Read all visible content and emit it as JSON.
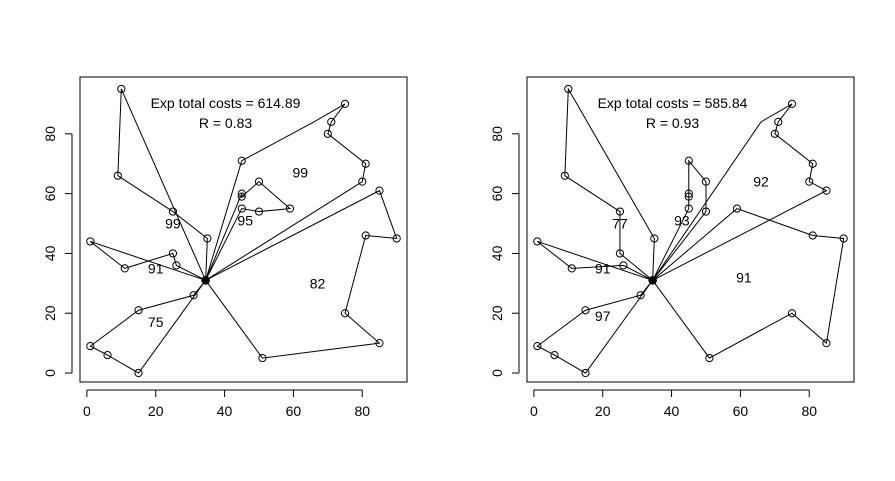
{
  "chart_data": [
    {
      "type": "scatter",
      "title": "",
      "xlabel": "",
      "ylabel": "",
      "xlim": [
        -2,
        93
      ],
      "ylim": [
        -3,
        99
      ],
      "xticks": [
        0,
        20,
        40,
        60,
        80
      ],
      "yticks": [
        0,
        20,
        40,
        60,
        80
      ],
      "annotations": [
        "Exp total costs = 614.89",
        "R = 0.83"
      ],
      "depot": {
        "x": 34.5,
        "y": 31
      },
      "points": [
        [
          10,
          95
        ],
        [
          9,
          66
        ],
        [
          25,
          54
        ],
        [
          35,
          45
        ],
        [
          1,
          44
        ],
        [
          11,
          35
        ],
        [
          25,
          40
        ],
        [
          26,
          36
        ],
        [
          45,
          71
        ],
        [
          75,
          90
        ],
        [
          71,
          84
        ],
        [
          70,
          80
        ],
        [
          81,
          70
        ],
        [
          80,
          64
        ],
        [
          85,
          61
        ],
        [
          90,
          45
        ],
        [
          81,
          46
        ],
        [
          75,
          20
        ],
        [
          85,
          10
        ],
        [
          51,
          5
        ],
        [
          31,
          26
        ],
        [
          15,
          21
        ],
        [
          1,
          9
        ],
        [
          6,
          6
        ],
        [
          15,
          0
        ],
        [
          45,
          60
        ],
        [
          45,
          59
        ],
        [
          50,
          64
        ],
        [
          59,
          55
        ],
        [
          50,
          54
        ],
        [
          45,
          55
        ]
      ],
      "routes": [
        {
          "label": "99",
          "label_x": 25,
          "label_y": 50,
          "stops": [
            [
              10,
              95
            ],
            [
              9,
              66
            ],
            [
              25,
              54
            ],
            [
              35,
              45
            ]
          ]
        },
        {
          "label": "91",
          "label_x": 20,
          "label_y": 35,
          "stops": [
            [
              1,
              44
            ],
            [
              11,
              35
            ],
            [
              25,
              40
            ],
            [
              26,
              36
            ]
          ]
        },
        {
          "label": "75",
          "label_x": 20,
          "label_y": 17,
          "stops": [
            [
              31,
              26
            ],
            [
              15,
              21
            ],
            [
              1,
              9
            ],
            [
              6,
              6
            ],
            [
              15,
              0
            ]
          ]
        },
        {
          "label": "95",
          "label_x": 46,
          "label_y": 51,
          "stops": [
            [
              45,
              55
            ],
            [
              50,
              54
            ],
            [
              59,
              55
            ],
            [
              50,
              64
            ],
            [
              45,
              59
            ],
            [
              45,
              60
            ]
          ]
        },
        {
          "label": "99",
          "label_x": 62,
          "label_y": 67,
          "stops": [
            [
              45,
              71
            ],
            [
              66,
              84
            ],
            [
              75,
              90
            ],
            [
              71,
              84
            ],
            [
              70,
              80
            ],
            [
              81,
              70
            ],
            [
              80,
              64
            ]
          ]
        },
        {
          "label": "82",
          "label_x": 67,
          "label_y": 30,
          "stops": [
            [
              85,
              61
            ],
            [
              90,
              45
            ],
            [
              81,
              46
            ],
            [
              75,
              20
            ],
            [
              85,
              10
            ],
            [
              51,
              5
            ]
          ]
        }
      ]
    },
    {
      "type": "scatter",
      "title": "",
      "xlabel": "",
      "ylabel": "",
      "xlim": [
        -2,
        93
      ],
      "ylim": [
        -3,
        99
      ],
      "xticks": [
        0,
        20,
        40,
        60,
        80
      ],
      "yticks": [
        0,
        20,
        40,
        60,
        80
      ],
      "annotations": [
        "Exp total costs = 585.84",
        "R = 0.93"
      ],
      "depot": {
        "x": 34.5,
        "y": 31
      },
      "points": [
        [
          10,
          95
        ],
        [
          9,
          66
        ],
        [
          25,
          54
        ],
        [
          35,
          45
        ],
        [
          1,
          44
        ],
        [
          11,
          35
        ],
        [
          25,
          40
        ],
        [
          26,
          36
        ],
        [
          45,
          71
        ],
        [
          75,
          90
        ],
        [
          71,
          84
        ],
        [
          70,
          80
        ],
        [
          81,
          70
        ],
        [
          80,
          64
        ],
        [
          85,
          61
        ],
        [
          90,
          45
        ],
        [
          81,
          46
        ],
        [
          75,
          20
        ],
        [
          85,
          10
        ],
        [
          51,
          5
        ],
        [
          31,
          26
        ],
        [
          15,
          21
        ],
        [
          1,
          9
        ],
        [
          6,
          6
        ],
        [
          15,
          0
        ],
        [
          45,
          60
        ],
        [
          45,
          59
        ],
        [
          50,
          64
        ],
        [
          59,
          55
        ],
        [
          50,
          54
        ],
        [
          45,
          55
        ]
      ],
      "routes": [
        {
          "label": "77",
          "label_x": 25,
          "label_y": 50,
          "stops": [
            [
              35,
              45
            ],
            [
              10,
              95
            ],
            [
              9,
              66
            ],
            [
              25,
              54
            ],
            [
              25,
              40
            ]
          ]
        },
        {
          "label": "91",
          "label_x": 20,
          "label_y": 35,
          "stops": [
            [
              26,
              36
            ],
            [
              11,
              35
            ],
            [
              1,
              44
            ]
          ]
        },
        {
          "label": "97",
          "label_x": 20,
          "label_y": 19,
          "stops": [
            [
              31,
              26
            ],
            [
              15,
              21
            ],
            [
              1,
              9
            ],
            [
              6,
              6
            ],
            [
              15,
              0
            ]
          ]
        },
        {
          "label": "93",
          "label_x": 43,
          "label_y": 51,
          "stops": [
            [
              45,
              55
            ],
            [
              45,
              60
            ],
            [
              45,
              59
            ],
            [
              45,
              71
            ],
            [
              50,
              64
            ],
            [
              50,
              54
            ]
          ]
        },
        {
          "label": "92",
          "label_x": 66,
          "label_y": 64,
          "stops": [
            [
              66,
              84
            ],
            [
              75,
              90
            ],
            [
              71,
              84
            ],
            [
              70,
              80
            ],
            [
              81,
              70
            ],
            [
              80,
              64
            ],
            [
              85,
              61
            ]
          ]
        },
        {
          "label": "91",
          "label_x": 61,
          "label_y": 32,
          "stops": [
            [
              59,
              55
            ],
            [
              81,
              46
            ],
            [
              90,
              45
            ],
            [
              85,
              10
            ],
            [
              75,
              20
            ],
            [
              51,
              5
            ]
          ]
        }
      ]
    }
  ]
}
